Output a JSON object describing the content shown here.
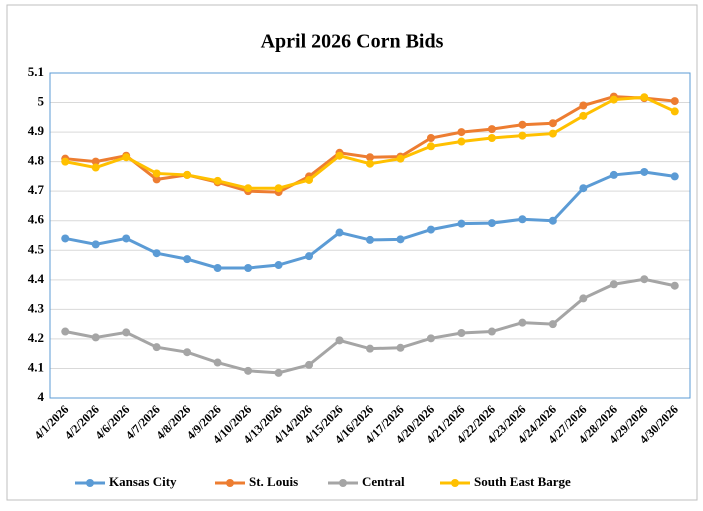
{
  "chart_data": {
    "type": "line",
    "title": "April 2026 Corn Bids",
    "categories": [
      "4/1/2026",
      "4/2/2026",
      "4/6/2026",
      "4/7/2026",
      "4/8/2026",
      "4/9/2026",
      "4/10/2026",
      "4/13/2026",
      "4/14/2026",
      "4/15/2026",
      "4/16/2026",
      "4/17/2026",
      "4/20/2026",
      "4/21/2026",
      "4/22/2026",
      "4/23/2026",
      "4/24/2026",
      "4/27/2026",
      "4/28/2026",
      "4/29/2026",
      "4/30/2026"
    ],
    "series": [
      {
        "name": "Kansas City",
        "color": "#5b9bd5",
        "values": [
          4.54,
          4.52,
          4.54,
          4.49,
          4.47,
          4.44,
          4.44,
          4.45,
          4.48,
          4.56,
          4.535,
          4.537,
          4.57,
          4.59,
          4.592,
          4.605,
          4.6,
          4.71,
          4.755,
          4.765,
          4.75
        ]
      },
      {
        "name": "St. Louis",
        "color": "#ed7d31",
        "values": [
          4.81,
          4.8,
          4.82,
          4.74,
          4.755,
          4.73,
          4.7,
          4.697,
          4.75,
          4.83,
          4.815,
          4.817,
          4.88,
          4.9,
          4.91,
          4.925,
          4.93,
          4.99,
          5.02,
          5.015,
          5.005
        ]
      },
      {
        "name": "Central",
        "color": "#a5a5a5",
        "values": [
          4.225,
          4.205,
          4.222,
          4.172,
          4.155,
          4.12,
          4.092,
          4.085,
          4.112,
          4.195,
          4.167,
          4.17,
          4.202,
          4.22,
          4.225,
          4.255,
          4.25,
          4.337,
          4.385,
          4.402,
          4.38
        ]
      },
      {
        "name": "South East Barge",
        "color": "#ffc000",
        "values": [
          4.8,
          4.78,
          4.815,
          4.76,
          4.755,
          4.735,
          4.71,
          4.71,
          4.738,
          4.82,
          4.793,
          4.81,
          4.852,
          4.868,
          4.88,
          4.888,
          4.895,
          4.955,
          5.01,
          5.018,
          4.97
        ]
      }
    ],
    "ylim": [
      4,
      5.1
    ],
    "yticks": [
      4,
      4.1,
      4.2,
      4.3,
      4.4,
      4.5,
      4.6,
      4.7,
      4.8,
      4.9,
      5,
      5.1
    ],
    "grid": true,
    "legend": "bottom"
  }
}
